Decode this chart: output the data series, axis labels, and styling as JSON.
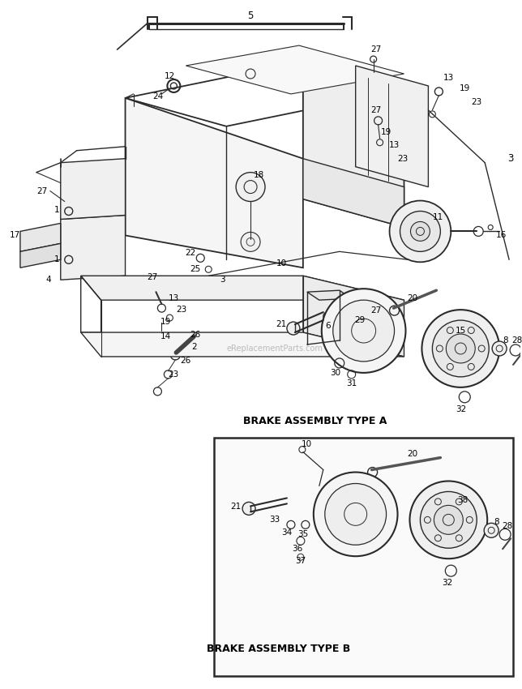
{
  "bg_color": "#ffffff",
  "line_color": "#2a2a2a",
  "text_color": "#000000",
  "watermark": "eReplacementParts.com",
  "label_A": "BRAKE ASSEMBLY TYPE A",
  "label_B": "BRAKE ASSEMBLY TYPE B",
  "fig_width": 6.44,
  "fig_height": 8.5,
  "dpi": 100
}
